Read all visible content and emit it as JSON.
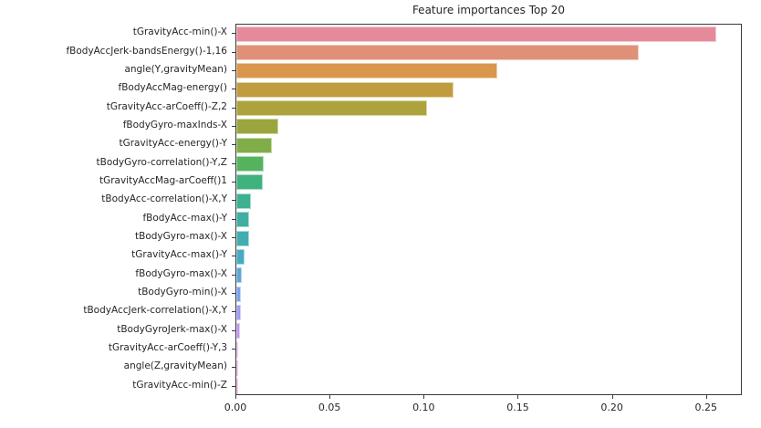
{
  "chart_data": {
    "type": "bar",
    "orientation": "horizontal",
    "title": "Feature importances Top 20",
    "xlabel": "",
    "ylabel": "",
    "grid": false,
    "legend": null,
    "xlim": [
      0,
      0.269
    ],
    "xticks": [
      0,
      0.05,
      0.1,
      0.15,
      0.2,
      0.25
    ],
    "xtick_labels": [
      "0.00",
      "0.05",
      "0.10",
      "0.15",
      "0.20",
      "0.25"
    ],
    "categories": [
      "tGravityAcc-min()-X",
      "fBodyAccJerk-bandsEnergy()-1,16",
      "angle(Y,gravityMean)",
      "fBodyAccMag-energy()",
      "tGravityAcc-arCoeff()-Z,2",
      "fBodyGyro-maxInds-X",
      "tGravityAcc-energy()-Y",
      "tBodyGyro-correlation()-Y,Z",
      "tGravityAccMag-arCoeff()1",
      "tBodyAcc-correlation()-X,Y",
      "fBodyAcc-max()-Y",
      "tBodyGyro-max()-X",
      "tGravityAcc-max()-Y",
      "fBodyGyro-max()-X",
      "tBodyGyro-min()-X",
      "tBodyAccJerk-correlation()-X,Y",
      "tBodyGyroJerk-max()-X",
      "tGravityAcc-arCoeff()-Y,3",
      "angle(Z,gravityMean)",
      "tGravityAcc-min()-Z"
    ],
    "values": [
      0.2549,
      0.2137,
      0.1386,
      0.1153,
      0.1013,
      0.0221,
      0.0189,
      0.0147,
      0.014,
      0.0079,
      0.0069,
      0.0069,
      0.0045,
      0.0031,
      0.0026,
      0.0026,
      0.0018,
      0.0011,
      0.0008,
      0.0008
    ],
    "bar_colors": [
      "#e58a9b",
      "#e09077",
      "#d9964d",
      "#c19c3f",
      "#ada23c",
      "#9aa63d",
      "#81ad48",
      "#55b35f",
      "#3fb27e",
      "#3eb092",
      "#3fafa1",
      "#41adb0",
      "#48a9c2",
      "#5ba6d8",
      "#7aa2ec",
      "#9f9cf2",
      "#bd93f1",
      "#d58deb",
      "#e386da",
      "#eb84c2"
    ],
    "colors_meta": {
      "spine": "#3a3a3a",
      "text": "#262626",
      "background": "#ffffff"
    }
  }
}
